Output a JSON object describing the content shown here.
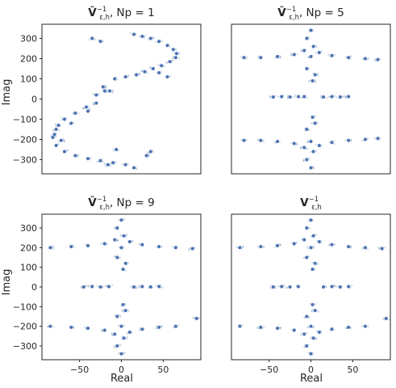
{
  "figure": {
    "y_axis_label": "Imag",
    "x_axis_label": "Real"
  },
  "chart_data": [
    {
      "type": "scatter",
      "title_main": "V̂",
      "title_sub": "ε,h",
      "title_sup": "−1",
      "title_rest": ", Np = 1",
      "xlim": [
        -95,
        95
      ],
      "ylim": [
        -370,
        370
      ],
      "xticks": [
        -50,
        0,
        50
      ],
      "yticks": [
        -300,
        -200,
        -100,
        0,
        100,
        200,
        300
      ],
      "show_xtick_labels": false,
      "show_ytick_labels": true,
      "grid": false,
      "marker_color": "#4c72b0",
      "pattern": "s-curve",
      "series": [
        {
          "points": [
            [
              15,
              320
            ],
            [
              25,
              310
            ],
            [
              35,
              300
            ],
            [
              45,
              285
            ],
            [
              55,
              265
            ],
            [
              62,
              245
            ],
            [
              66,
              225
            ],
            [
              65,
              205
            ],
            [
              58,
              185
            ],
            [
              48,
              165
            ],
            [
              38,
              150
            ],
            [
              28,
              135
            ],
            [
              18,
              120
            ],
            [
              5,
              110
            ],
            [
              -8,
              100
            ],
            [
              -20,
              40
            ],
            [
              -30,
              20
            ],
            [
              -42,
              -40
            ],
            [
              -55,
              -70
            ],
            [
              -68,
              -100
            ],
            [
              -78,
              -150
            ],
            [
              -82,
              -190
            ],
            [
              -78,
              -230
            ],
            [
              -68,
              -260
            ],
            [
              -55,
              -280
            ],
            [
              -40,
              -295
            ],
            [
              -25,
              -305
            ],
            [
              -10,
              -315
            ],
            [
              5,
              -325
            ],
            [
              15,
              -340
            ],
            [
              -22,
              60
            ],
            [
              -14,
              40
            ],
            [
              -30,
              -20
            ],
            [
              -40,
              -60
            ],
            [
              -6,
              -250
            ],
            [
              -16,
              -325
            ],
            [
              -35,
              300
            ],
            [
              -25,
              285
            ],
            [
              30,
              -280
            ],
            [
              35,
              -260
            ],
            [
              45,
              130
            ],
            [
              55,
              110
            ],
            [
              -60,
              -120
            ],
            [
              -75,
              -130
            ],
            [
              -80,
              -175
            ],
            [
              -72,
              -205
            ]
          ]
        }
      ]
    },
    {
      "type": "scatter",
      "title_main": "V̂",
      "title_sub": "ε,h",
      "title_sup": "−1",
      "title_rest": ", Np = 5",
      "xlim": [
        -95,
        95
      ],
      "ylim": [
        -370,
        370
      ],
      "xticks": [
        -50,
        0,
        50
      ],
      "yticks": [
        -300,
        -200,
        -100,
        0,
        100,
        200,
        300
      ],
      "show_xtick_labels": false,
      "show_ytick_labels": false,
      "grid": false,
      "marker_color": "#4c72b0",
      "pattern": "two-lobes",
      "series": [
        {
          "points": [
            [
              0,
              340
            ],
            [
              -5,
              300
            ],
            [
              3,
              260
            ],
            [
              -8,
              240
            ],
            [
              10,
              230
            ],
            [
              -20,
              220
            ],
            [
              25,
              215
            ],
            [
              -40,
              210
            ],
            [
              45,
              205
            ],
            [
              -60,
              205
            ],
            [
              65,
              200
            ],
            [
              -80,
              205
            ],
            [
              80,
              195
            ],
            [
              0,
              210
            ],
            [
              -5,
              150
            ],
            [
              5,
              120
            ],
            [
              2,
              90
            ],
            [
              -45,
              10
            ],
            [
              -35,
              12
            ],
            [
              -25,
              10
            ],
            [
              -15,
              12
            ],
            [
              -8,
              12
            ],
            [
              15,
              10
            ],
            [
              25,
              12
            ],
            [
              35,
              10
            ],
            [
              45,
              12
            ],
            [
              0,
              -340
            ],
            [
              -5,
              -300
            ],
            [
              3,
              -260
            ],
            [
              -8,
              -240
            ],
            [
              10,
              -230
            ],
            [
              -20,
              -220
            ],
            [
              25,
              -215
            ],
            [
              -40,
              -210
            ],
            [
              45,
              -205
            ],
            [
              -60,
              -205
            ],
            [
              65,
              -200
            ],
            [
              -80,
              -205
            ],
            [
              80,
              -195
            ],
            [
              0,
              -210
            ],
            [
              -5,
              -150
            ],
            [
              5,
              -120
            ],
            [
              2,
              -90
            ]
          ]
        }
      ]
    },
    {
      "type": "scatter",
      "title_main": "V̂",
      "title_sub": "ε,h",
      "title_sup": "−1",
      "title_rest": ", Np = 9",
      "xlim": [
        -95,
        95
      ],
      "ylim": [
        -370,
        370
      ],
      "xticks": [
        -50,
        0,
        50
      ],
      "yticks": [
        -300,
        -200,
        -100,
        0,
        100,
        200,
        300
      ],
      "show_xtick_labels": true,
      "show_ytick_labels": true,
      "grid": false,
      "marker_color": "#4c72b0",
      "pattern": "two-lobes",
      "series": [
        {
          "points": [
            [
              0,
              340
            ],
            [
              -5,
              300
            ],
            [
              3,
              260
            ],
            [
              -8,
              240
            ],
            [
              10,
              230
            ],
            [
              -20,
              220
            ],
            [
              25,
              215
            ],
            [
              -40,
              210
            ],
            [
              45,
              205
            ],
            [
              -60,
              205
            ],
            [
              65,
              200
            ],
            [
              -85,
              200
            ],
            [
              85,
              195
            ],
            [
              0,
              200
            ],
            [
              -5,
              150
            ],
            [
              5,
              120
            ],
            [
              2,
              90
            ],
            [
              -45,
              0
            ],
            [
              -35,
              2
            ],
            [
              -25,
              0
            ],
            [
              -15,
              2
            ],
            [
              15,
              0
            ],
            [
              25,
              2
            ],
            [
              35,
              0
            ],
            [
              45,
              2
            ],
            [
              0,
              -340
            ],
            [
              -5,
              -300
            ],
            [
              3,
              -260
            ],
            [
              -8,
              -240
            ],
            [
              10,
              -230
            ],
            [
              -20,
              -220
            ],
            [
              25,
              -215
            ],
            [
              -40,
              -210
            ],
            [
              45,
              -205
            ],
            [
              -60,
              -205
            ],
            [
              65,
              -200
            ],
            [
              -85,
              -200
            ],
            [
              90,
              -160
            ],
            [
              0,
              -200
            ],
            [
              -5,
              -150
            ],
            [
              5,
              -120
            ],
            [
              2,
              -90
            ]
          ]
        }
      ]
    },
    {
      "type": "scatter",
      "title_main": "V",
      "title_sub": "ε,h",
      "title_sup": "−1",
      "title_rest": "",
      "xlim": [
        -95,
        95
      ],
      "ylim": [
        -370,
        370
      ],
      "xticks": [
        -50,
        0,
        50
      ],
      "yticks": [
        -300,
        -200,
        -100,
        0,
        100,
        200,
        300
      ],
      "show_xtick_labels": true,
      "show_ytick_labels": false,
      "grid": false,
      "marker_color": "#4c72b0",
      "pattern": "two-lobes",
      "series": [
        {
          "points": [
            [
              0,
              340
            ],
            [
              -5,
              300
            ],
            [
              3,
              260
            ],
            [
              -8,
              240
            ],
            [
              10,
              230
            ],
            [
              -20,
              220
            ],
            [
              25,
              215
            ],
            [
              -40,
              210
            ],
            [
              45,
              205
            ],
            [
              -60,
              205
            ],
            [
              65,
              200
            ],
            [
              -85,
              200
            ],
            [
              85,
              195
            ],
            [
              0,
              200
            ],
            [
              -5,
              150
            ],
            [
              5,
              120
            ],
            [
              2,
              90
            ],
            [
              -45,
              0
            ],
            [
              -35,
              2
            ],
            [
              -25,
              0
            ],
            [
              -15,
              2
            ],
            [
              15,
              0
            ],
            [
              25,
              2
            ],
            [
              35,
              0
            ],
            [
              45,
              2
            ],
            [
              0,
              -340
            ],
            [
              -5,
              -300
            ],
            [
              3,
              -260
            ],
            [
              -8,
              -240
            ],
            [
              10,
              -230
            ],
            [
              -20,
              -220
            ],
            [
              25,
              -215
            ],
            [
              -40,
              -210
            ],
            [
              45,
              -205
            ],
            [
              -60,
              -205
            ],
            [
              65,
              -200
            ],
            [
              -85,
              -200
            ],
            [
              90,
              -160
            ],
            [
              0,
              -200
            ],
            [
              -5,
              -150
            ],
            [
              5,
              -120
            ],
            [
              2,
              -90
            ]
          ]
        }
      ]
    }
  ]
}
